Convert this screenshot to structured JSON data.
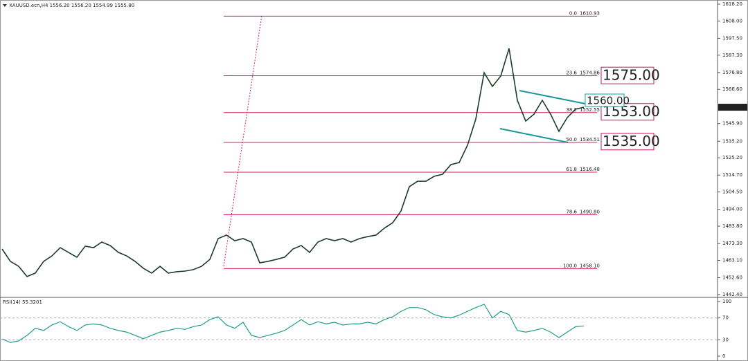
{
  "chart_data": [
    {
      "type": "line",
      "title": "XAUUSD.ecn,H4  1556.20 1556.20 1554.99 1555.80",
      "categories": [
        null,
        null,
        null,
        null,
        null,
        null,
        null,
        null,
        null,
        null,
        null,
        null,
        null,
        null,
        null,
        null,
        null,
        null,
        null,
        null,
        null,
        null,
        null,
        null,
        null,
        null,
        null,
        null,
        null,
        null,
        null,
        null,
        null,
        null,
        null,
        null,
        null,
        null,
        null,
        null,
        null,
        null,
        null,
        null,
        null,
        null,
        null,
        null,
        null,
        null,
        null,
        null,
        null,
        null,
        null,
        null,
        null,
        null,
        null,
        null,
        null,
        null,
        null,
        null,
        null,
        null,
        null,
        null,
        null,
        null,
        null
      ],
      "series": [
        {
          "color": "#1b3a2a",
          "values": [
            1470,
            1462.5,
            1459.5,
            1453.3,
            1455.4,
            1462.5,
            1465.8,
            1470.8,
            1467.9,
            1465,
            1471.7,
            1470.8,
            1474.2,
            1472.1,
            1467.9,
            1465.8,
            1462.5,
            1458.3,
            1455.4,
            1459.5,
            1455.4,
            1456.2,
            1456.6,
            1457.5,
            1459.5,
            1463.7,
            1476.3,
            1478.4,
            1475,
            1476.3,
            1474.2,
            1461.6,
            1462.5,
            1463.7,
            1465,
            1470,
            1472.1,
            1467.9,
            1474.2,
            1476.3,
            1475,
            1476.3,
            1474.2,
            1476.3,
            1477.5,
            1478.4,
            1482.6,
            1485.9,
            1493,
            1507.7,
            1511,
            1511,
            1514,
            1515.2,
            1521.1,
            1522.3,
            1532.8,
            1548.7,
            1576.7,
            1568.4,
            1574.7,
            1591.4,
            1560,
            1547.4,
            1551.6,
            1560,
            1551.6,
            1541.2,
            1549.5,
            1554.6,
            1555.8
          ]
        }
      ],
      "ylim": [
        1440.7,
        1620.7
      ],
      "yticks": [
        {
          "value": 1618.2,
          "label": "1618.20"
        },
        {
          "value": 1608,
          "label": "1608.00"
        },
        {
          "value": 1597.5,
          "label": "1597.50"
        },
        {
          "value": 1587.3,
          "label": "1587.30"
        },
        {
          "value": 1576.8,
          "label": "1576.80"
        },
        {
          "value": 1566.6,
          "label": "1566.60"
        },
        {
          "value": 1545.9,
          "label": "1545.90"
        },
        {
          "value": 1535.2,
          "label": "1535.20"
        },
        {
          "value": 1525.2,
          "label": "1525.20"
        },
        {
          "value": 1514.7,
          "label": "1514.70"
        },
        {
          "value": 1504.5,
          "label": "1504.50"
        },
        {
          "value": 1494,
          "label": "1494.00"
        },
        {
          "value": 1483.8,
          "label": "1483.80"
        },
        {
          "value": 1473.3,
          "label": "1473.30"
        },
        {
          "value": 1463.1,
          "label": "1463.10"
        },
        {
          "value": 1452.6,
          "label": "1452.60"
        },
        {
          "value": 1442.4,
          "label": "1442.40"
        }
      ],
      "current_price": {
        "value": 1555.8,
        "label": "1555.80"
      },
      "fib_color": "#d81b60",
      "fib_levels": [
        {
          "ratio": "0.0",
          "value": 1610.93,
          "label": "1610.93"
        },
        {
          "ratio": "23.6",
          "value": 1574.86,
          "label": "1574.86"
        },
        {
          "ratio": "38.2",
          "value": 1552.55,
          "label": "1552.55"
        },
        {
          "ratio": "50.0",
          "value": 1534.51,
          "label": "1534.51"
        },
        {
          "ratio": "61.8",
          "value": 1516.48,
          "label": "1516.48"
        },
        {
          "ratio": "78.6",
          "value": 1490.8,
          "label": "1490.80"
        },
        {
          "ratio": "100.0",
          "value": 1458.1,
          "label": "1458.10"
        }
      ],
      "annotations": [
        {
          "value": 1575,
          "label": "1575.00",
          "color": "#c2185b"
        },
        {
          "value": 1553,
          "label": "1553.00",
          "color": "#c2185b"
        },
        {
          "value": 1535,
          "label": "1535.00",
          "color": "#c2185b"
        },
        {
          "value": 1560,
          "label": "1560.00",
          "color": "#16989a"
        }
      ]
    },
    {
      "type": "line",
      "title": "RSI(14) 55.3201",
      "series": [
        {
          "color": "#1f9e89",
          "values": [
            31.6,
            25,
            28,
            38,
            51,
            47,
            57,
            63,
            54,
            47,
            57,
            59,
            57,
            51,
            47,
            44,
            38,
            32,
            38,
            44,
            47,
            51,
            49,
            54,
            57,
            67,
            72,
            57,
            51,
            62,
            38,
            34,
            38,
            42,
            47,
            57,
            67,
            57,
            63,
            59,
            62,
            57,
            59,
            59,
            62,
            59,
            67,
            72,
            82,
            89,
            89,
            85,
            76,
            72,
            70,
            75,
            82,
            89,
            95,
            70,
            82,
            76,
            47,
            44,
            47,
            51,
            44,
            34,
            44,
            54,
            55.3
          ]
        }
      ],
      "ylim": [
        0,
        100
      ],
      "yticks": [
        100,
        70,
        30,
        0
      ]
    }
  ]
}
